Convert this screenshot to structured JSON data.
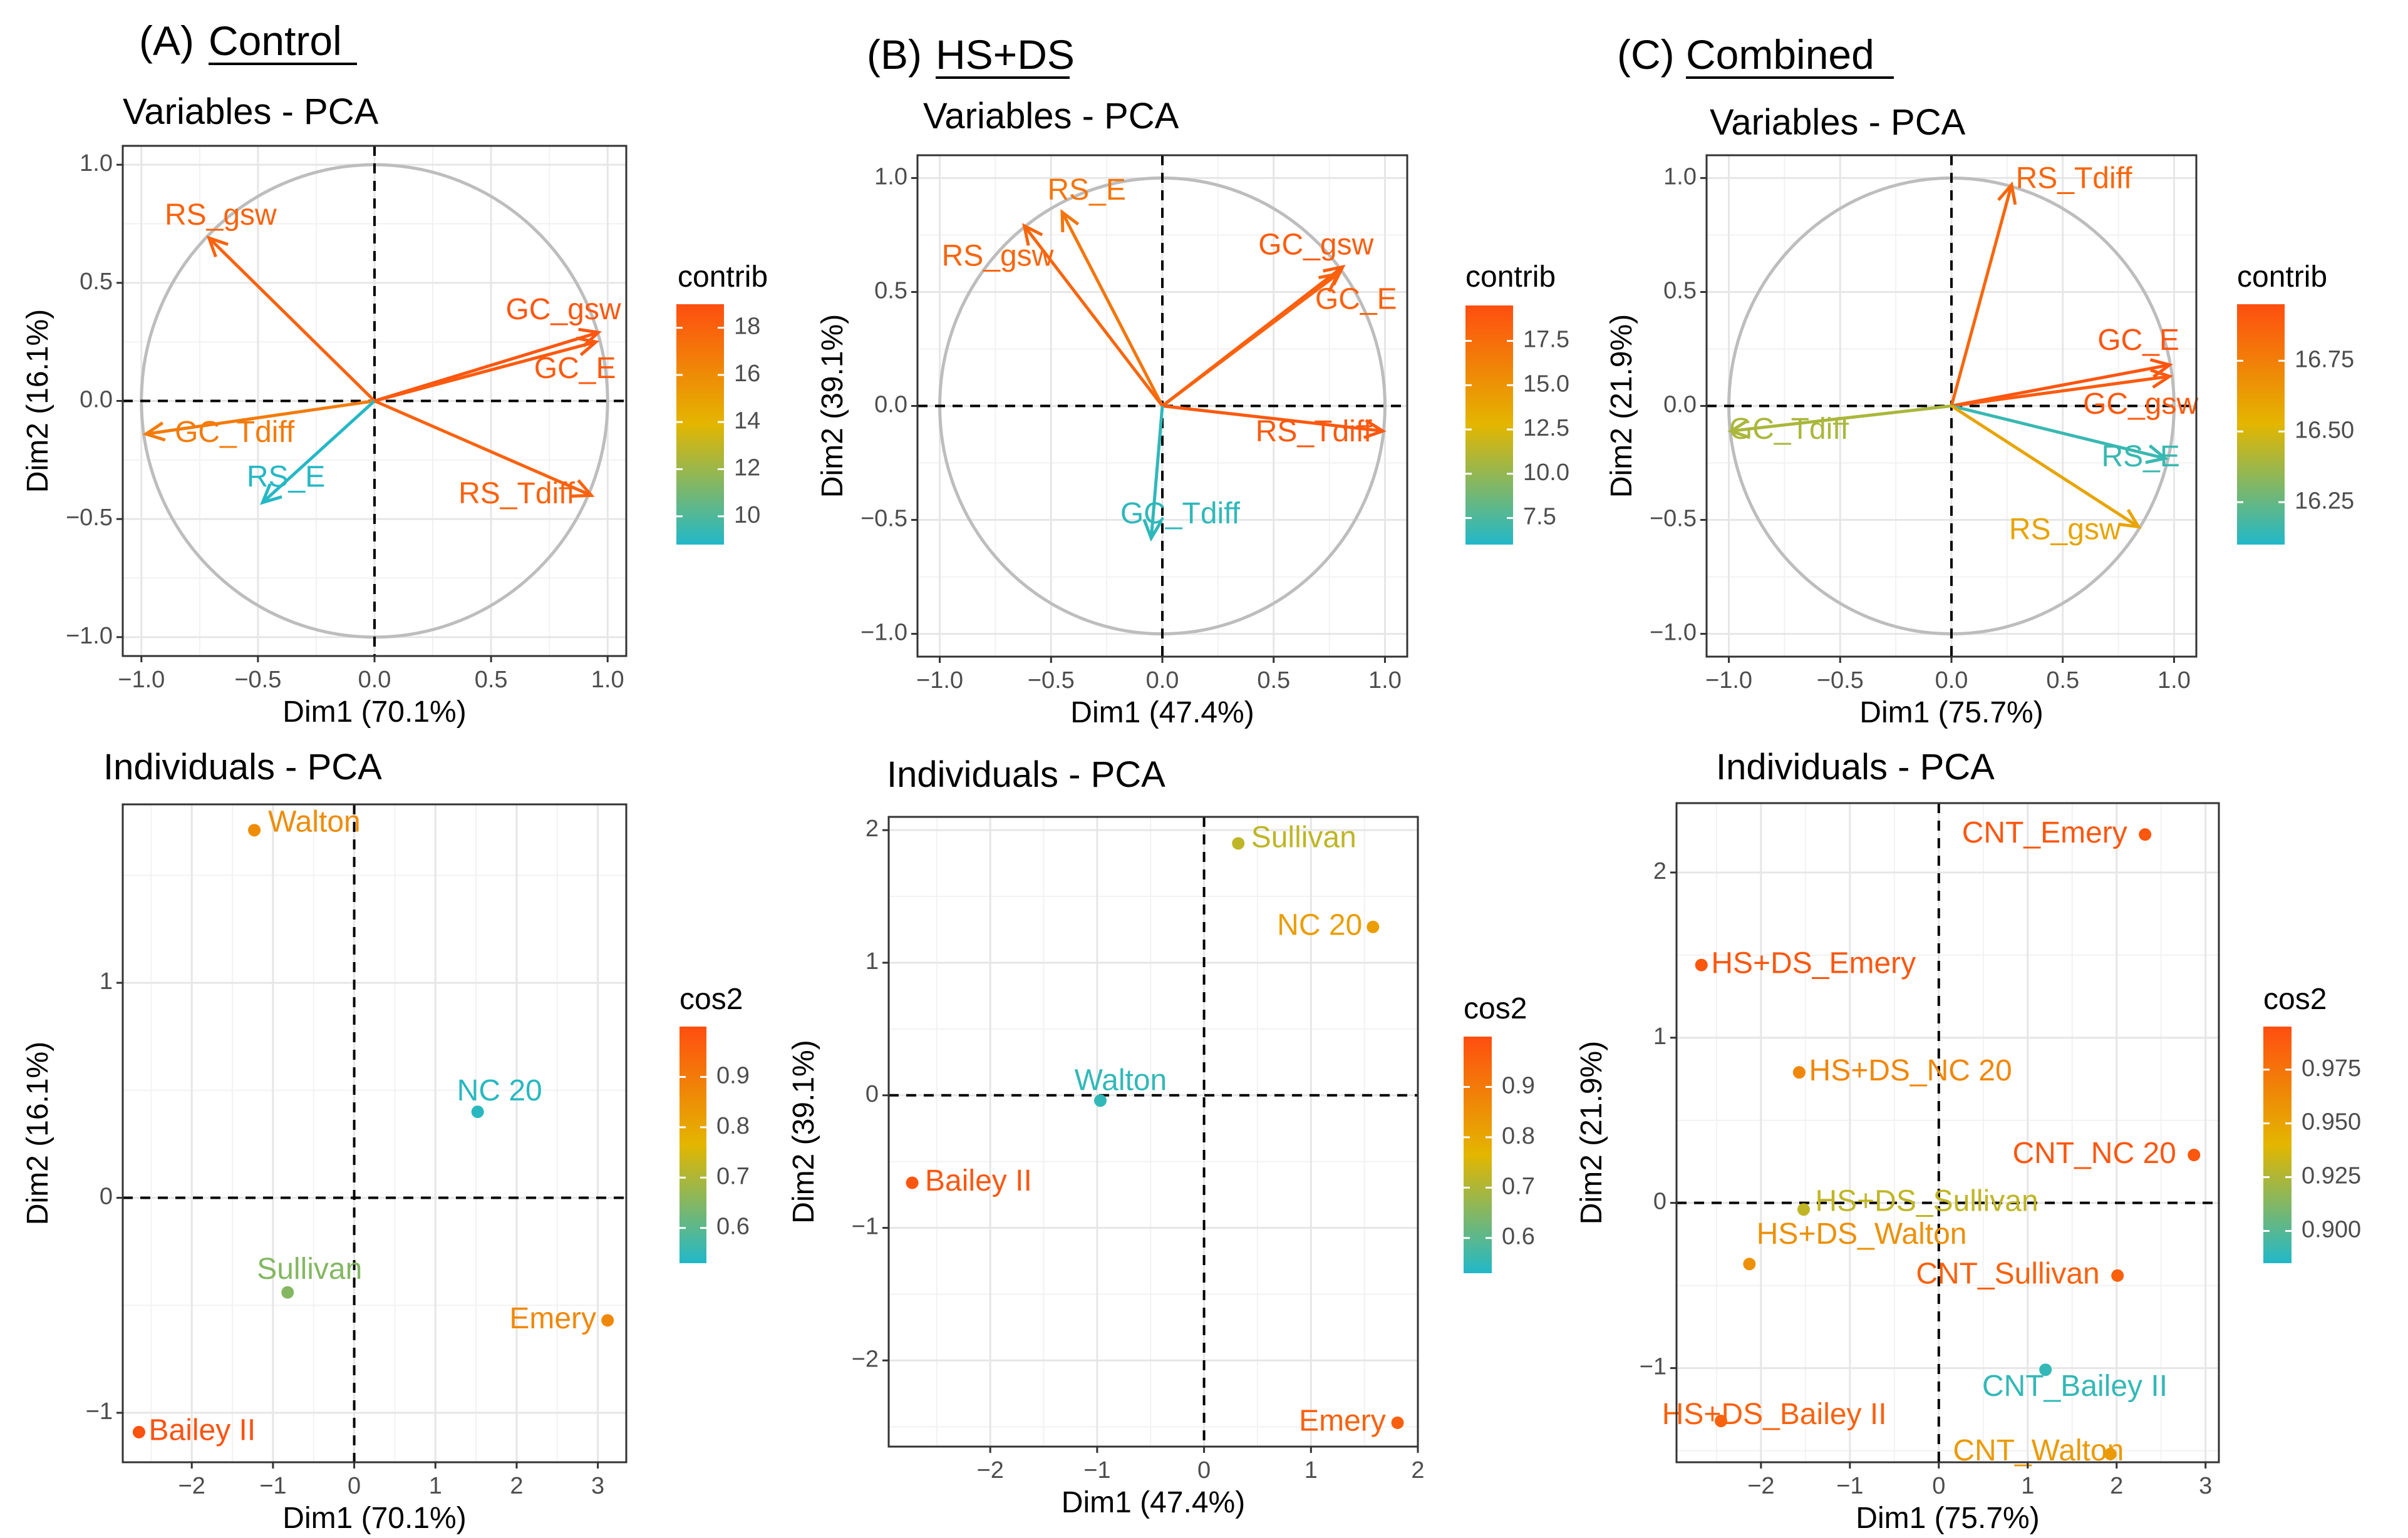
{
  "headers": [
    {
      "letter": "(A)",
      "name": "Control"
    },
    {
      "letter": "(B)",
      "name": "HS+DS"
    },
    {
      "letter": "(C)",
      "name": "Combined"
    }
  ],
  "chart_data": [
    {
      "type": "scatter",
      "subtype": "pca-variables",
      "panel": "A-top",
      "title": "Variables - PCA",
      "xlabel": "Dim1 (70.1%)",
      "ylabel": "Dim2 (16.1%)",
      "xlim": [
        -1.08,
        1.08
      ],
      "ylim": [
        -1.08,
        1.08
      ],
      "xticks": [
        -1.0,
        -0.5,
        0.0,
        0.5,
        1.0
      ],
      "yticks": [
        -1.0,
        -0.5,
        0.0,
        0.5,
        1.0
      ],
      "tick_labels_x": [
        "−1.0",
        "−0.5",
        "0.0",
        "0.5",
        "1.0"
      ],
      "tick_labels_y": [
        "−1.0",
        "−0.5",
        "0.0",
        "0.5",
        "1.0"
      ],
      "legend": {
        "title": "contrib",
        "range": [
          8.8,
          19.0
        ],
        "ticks": [
          10,
          12,
          14,
          16,
          18
        ],
        "tick_labels": [
          "10",
          "12",
          "14",
          "16",
          "18"
        ]
      },
      "vectors": [
        {
          "name": "RS_gsw",
          "x": -0.71,
          "y": 0.69,
          "value": 18.0,
          "lx": -0.66,
          "ly": 0.78
        },
        {
          "name": "GC_gsw",
          "x": 0.96,
          "y": 0.29,
          "value": 18.6,
          "lx": 0.81,
          "ly": 0.38
        },
        {
          "name": "GC_E",
          "x": 0.95,
          "y": 0.25,
          "value": 18.4,
          "lx": 0.86,
          "ly": 0.13
        },
        {
          "name": "GC_Tdiff",
          "x": -0.98,
          "y": -0.14,
          "value": 16.8,
          "lx": -0.6,
          "ly": -0.14
        },
        {
          "name": "RS_E",
          "x": -0.48,
          "y": -0.43,
          "value": 8.9,
          "lx": -0.38,
          "ly": -0.33
        },
        {
          "name": "RS_Tdiff",
          "x": 0.93,
          "y": -0.4,
          "value": 18.0,
          "lx": 0.61,
          "ly": -0.4
        }
      ]
    },
    {
      "type": "scatter",
      "subtype": "pca-variables",
      "panel": "B-top",
      "title": "Variables - PCA",
      "xlabel": "Dim1 (47.4%)",
      "ylabel": "Dim2 (39.1%)",
      "xlim": [
        -1.1,
        1.1
      ],
      "ylim": [
        -1.1,
        1.1
      ],
      "xticks": [
        -1.0,
        -0.5,
        0.0,
        0.5,
        1.0
      ],
      "yticks": [
        -1.0,
        -0.5,
        0.0,
        0.5,
        1.0
      ],
      "tick_labels_x": [
        "−1.0",
        "−0.5",
        "0.0",
        "0.5",
        "1.0"
      ],
      "tick_labels_y": [
        "−1.0",
        "−0.5",
        "0.0",
        "0.5",
        "1.0"
      ],
      "legend": {
        "title": "contrib",
        "range": [
          6.0,
          19.5
        ],
        "ticks": [
          7.5,
          10.0,
          12.5,
          15.0,
          17.5
        ],
        "tick_labels": [
          "7.5",
          "10.0",
          "12.5",
          "15.0",
          "17.5"
        ]
      },
      "vectors": [
        {
          "name": "RS_E",
          "x": -0.45,
          "y": 0.85,
          "value": 17.0,
          "lx": -0.34,
          "ly": 0.94
        },
        {
          "name": "RS_gsw",
          "x": -0.62,
          "y": 0.79,
          "value": 18.0,
          "lx": -0.74,
          "ly": 0.65
        },
        {
          "name": "GC_gsw",
          "x": 0.81,
          "y": 0.61,
          "value": 18.5,
          "lx": 0.69,
          "ly": 0.7
        },
        {
          "name": "GC_E",
          "x": 0.79,
          "y": 0.58,
          "value": 18.2,
          "lx": 0.87,
          "ly": 0.46
        },
        {
          "name": "RS_Tdiff",
          "x": 0.99,
          "y": -0.11,
          "value": 18.8,
          "lx": 0.68,
          "ly": -0.12
        },
        {
          "name": "GC_Tdiff",
          "x": -0.05,
          "y": -0.58,
          "value": 6.5,
          "lx": 0.08,
          "ly": -0.48
        }
      ]
    },
    {
      "type": "scatter",
      "subtype": "pca-variables",
      "panel": "C-top",
      "title": "Variables - PCA",
      "xlabel": "Dim1 (75.7%)",
      "ylabel": "Dim2 (21.9%)",
      "xlim": [
        -1.1,
        1.1
      ],
      "ylim": [
        -1.1,
        1.1
      ],
      "xticks": [
        -1.0,
        -0.5,
        0.0,
        0.5,
        1.0
      ],
      "yticks": [
        -1.0,
        -0.5,
        0.0,
        0.5,
        1.0
      ],
      "tick_labels_x": [
        "−1.0",
        "−0.5",
        "0.0",
        "0.5",
        "1.0"
      ],
      "tick_labels_y": [
        "−1.0",
        "−0.5",
        "0.0",
        "0.5",
        "1.0"
      ],
      "legend": {
        "title": "contrib",
        "range": [
          16.1,
          16.95
        ],
        "ticks": [
          16.25,
          16.5,
          16.75
        ],
        "tick_labels": [
          "16.25",
          "16.50",
          "16.75"
        ]
      },
      "vectors": [
        {
          "name": "RS_Tdiff",
          "x": 0.27,
          "y": 0.97,
          "value": 16.85,
          "lx": 0.55,
          "ly": 0.99
        },
        {
          "name": "GC_E",
          "x": 0.98,
          "y": 0.18,
          "value": 16.92,
          "lx": 0.84,
          "ly": 0.28
        },
        {
          "name": "GC_gsw",
          "x": 0.98,
          "y": 0.13,
          "value": 16.9,
          "lx": 0.85,
          "ly": 0.0
        },
        {
          "name": "RS_E",
          "x": 0.96,
          "y": -0.23,
          "value": 16.15,
          "lx": 0.85,
          "ly": -0.23
        },
        {
          "name": "RS_gsw",
          "x": 0.84,
          "y": -0.53,
          "value": 16.6,
          "lx": 0.51,
          "ly": -0.55
        },
        {
          "name": "GC_Tdiff",
          "x": -0.99,
          "y": -0.11,
          "value": 16.4,
          "lx": -0.73,
          "ly": -0.11
        }
      ]
    },
    {
      "type": "scatter",
      "subtype": "pca-individuals",
      "panel": "A-bottom",
      "title": "Individuals - PCA",
      "xlabel": "Dim1 (70.1%)",
      "ylabel": "Dim2 (16.1%)",
      "xlim": [
        -2.85,
        3.35
      ],
      "ylim": [
        -1.23,
        1.83
      ],
      "xticks": [
        -2,
        -1,
        0,
        1,
        2,
        3
      ],
      "yticks": [
        -1,
        0,
        1
      ],
      "tick_labels_x": [
        "−2",
        "−1",
        "0",
        "1",
        "2",
        "3"
      ],
      "tick_labels_y": [
        "−1",
        "0",
        "1"
      ],
      "legend": {
        "title": "cos2",
        "range": [
          0.53,
          1.0
        ],
        "ticks": [
          0.6,
          0.7,
          0.8,
          0.9
        ],
        "tick_labels": [
          "0.6",
          "0.7",
          "0.8",
          "0.9"
        ]
      },
      "points": [
        {
          "name": "Walton",
          "x": -1.23,
          "y": 1.71,
          "value": 0.86,
          "lx": -1.06,
          "ly": 1.74,
          "anchor": "start"
        },
        {
          "name": "NC 20",
          "x": 1.52,
          "y": 0.4,
          "value": 0.54,
          "lx": 1.79,
          "ly": 0.49,
          "anchor": "middle"
        },
        {
          "name": "Sullivan",
          "x": -0.82,
          "y": -0.44,
          "value": 0.65,
          "lx": -0.55,
          "ly": -0.34,
          "anchor": "middle"
        },
        {
          "name": "Emery",
          "x": 3.12,
          "y": -0.57,
          "value": 0.87,
          "lx": 2.98,
          "ly": -0.57,
          "anchor": "end"
        },
        {
          "name": "Bailey II",
          "x": -2.65,
          "y": -1.09,
          "value": 0.99,
          "lx": -2.53,
          "ly": -1.09,
          "anchor": "start"
        }
      ]
    },
    {
      "type": "scatter",
      "subtype": "pca-individuals",
      "panel": "B-bottom",
      "title": "Individuals - PCA",
      "xlabel": "Dim1 (47.4%)",
      "ylabel": "Dim2 (39.1%)",
      "xlim": [
        -2.95,
        2.0
      ],
      "ylim": [
        -2.65,
        2.1
      ],
      "xticks": [
        -2,
        -1,
        0,
        1,
        2
      ],
      "yticks": [
        -2,
        -1,
        0,
        1,
        2
      ],
      "tick_labels_x": [
        "−2",
        "−1",
        "0",
        "1",
        "2"
      ],
      "tick_labels_y": [
        "−2",
        "−1",
        "0",
        "1",
        "2"
      ],
      "legend": {
        "title": "cos2",
        "range": [
          0.53,
          1.0
        ],
        "ticks": [
          0.6,
          0.7,
          0.8,
          0.9
        ],
        "tick_labels": [
          "0.6",
          "0.7",
          "0.8",
          "0.9"
        ]
      },
      "points": [
        {
          "name": "Sullivan",
          "x": 0.32,
          "y": 1.9,
          "value": 0.72,
          "lx": 0.44,
          "ly": 1.93,
          "anchor": "start"
        },
        {
          "name": "NC 20",
          "x": 1.58,
          "y": 1.27,
          "value": 0.82,
          "lx": 1.48,
          "ly": 1.27,
          "anchor": "end"
        },
        {
          "name": "Walton",
          "x": -0.97,
          "y": -0.04,
          "value": 0.55,
          "lx": -0.78,
          "ly": 0.1,
          "anchor": "middle"
        },
        {
          "name": "Bailey II",
          "x": -2.73,
          "y": -0.66,
          "value": 0.98,
          "lx": -2.61,
          "ly": -0.66,
          "anchor": "start"
        },
        {
          "name": "Emery",
          "x": 1.81,
          "y": -2.47,
          "value": 0.96,
          "lx": 1.7,
          "ly": -2.47,
          "anchor": "end"
        }
      ]
    },
    {
      "type": "scatter",
      "subtype": "pca-individuals",
      "panel": "C-bottom",
      "title": "Individuals - PCA",
      "xlabel": "Dim1 (75.7%)",
      "ylabel": "Dim2 (21.9%)",
      "xlim": [
        -2.95,
        3.15
      ],
      "ylim": [
        -1.57,
        2.42
      ],
      "xticks": [
        -2,
        -1,
        0,
        1,
        2,
        3
      ],
      "yticks": [
        -1,
        0,
        1,
        2
      ],
      "tick_labels_x": [
        "−2",
        "−1",
        "0",
        "1",
        "2",
        "3"
      ],
      "tick_labels_y": [
        "−1",
        "0",
        "1",
        "2"
      ],
      "legend": {
        "title": "cos2",
        "range": [
          0.885,
          0.995
        ],
        "ticks": [
          0.9,
          0.925,
          0.95,
          0.975
        ],
        "tick_labels": [
          "0.900",
          "0.925",
          "0.950",
          "0.975"
        ]
      },
      "points": [
        {
          "name": "CNT_Emery",
          "x": 2.32,
          "y": 2.23,
          "value": 0.99,
          "lx": 2.12,
          "ly": 2.23,
          "anchor": "end"
        },
        {
          "name": "HS+DS_Emery",
          "x": -2.67,
          "y": 1.44,
          "value": 0.99,
          "lx": -2.56,
          "ly": 1.44,
          "anchor": "start"
        },
        {
          "name": "HS+DS_NC 20",
          "x": -1.57,
          "y": 0.79,
          "value": 0.965,
          "lx": -1.46,
          "ly": 0.79,
          "anchor": "start"
        },
        {
          "name": "CNT_NC 20",
          "x": 2.87,
          "y": 0.29,
          "value": 0.99,
          "lx": 2.67,
          "ly": 0.29,
          "anchor": "end"
        },
        {
          "name": "HS+DS_Sullivan",
          "x": -1.52,
          "y": -0.04,
          "value": 0.93,
          "lx": -1.39,
          "ly": 0.0,
          "anchor": "start"
        },
        {
          "name": "HS+DS_Walton",
          "x": -2.13,
          "y": -0.37,
          "value": 0.96,
          "lx": -2.05,
          "ly": -0.2,
          "anchor": "start"
        },
        {
          "name": "CNT_Sullivan",
          "x": 2.01,
          "y": -0.44,
          "value": 0.985,
          "lx": 1.81,
          "ly": -0.44,
          "anchor": "end"
        },
        {
          "name": "CNT_Bailey II",
          "x": 1.2,
          "y": -1.01,
          "value": 0.89,
          "lx": 1.53,
          "ly": -1.12,
          "anchor": "middle"
        },
        {
          "name": "HS+DS_Bailey II",
          "x": -2.45,
          "y": -1.32,
          "value": 0.985,
          "lx": -1.85,
          "ly": -1.29,
          "anchor": "middle"
        },
        {
          "name": "CNT_Walton",
          "x": 1.93,
          "y": -1.52,
          "value": 0.955,
          "lx": 1.12,
          "ly": -1.51,
          "anchor": "middle"
        }
      ]
    }
  ]
}
